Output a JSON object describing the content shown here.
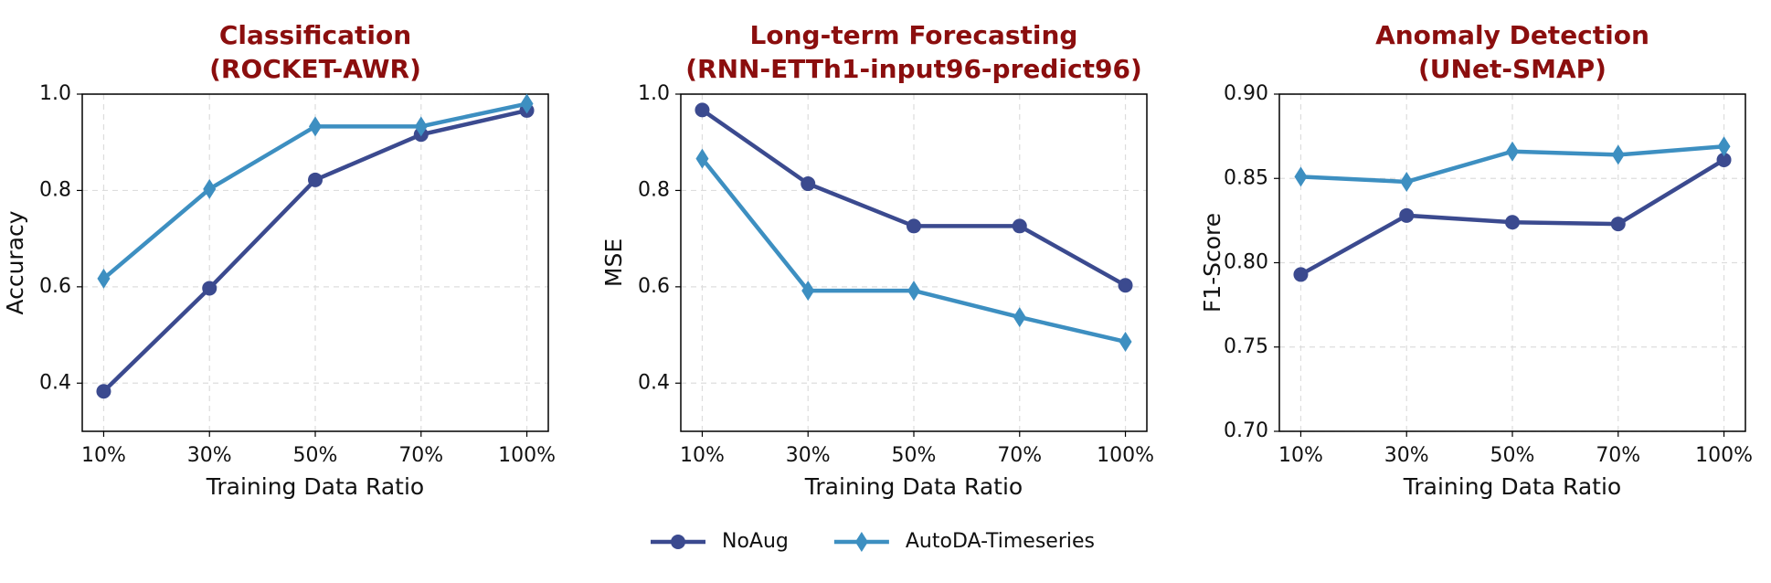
{
  "chart_data": [
    {
      "type": "line",
      "title": "Classification",
      "subtitle": "(ROCKET-AWR)",
      "xlabel": "Training Data Ratio",
      "ylabel": "Accuracy",
      "categories": [
        "10%",
        "30%",
        "50%",
        "70%",
        "100%"
      ],
      "ylim": [
        0.3,
        1.0
      ],
      "yticks": [
        0.4,
        0.6,
        0.8,
        {
          "value": 1.0,
          "label": "1.0"
        }
      ],
      "grid": true,
      "series": [
        {
          "name": "NoAug",
          "color": "#3b4a8f",
          "marker": "circle",
          "values": [
            0.383,
            0.597,
            0.822,
            0.916,
            0.966
          ]
        },
        {
          "name": "AutoDA-Timeseries",
          "color": "#3d8fc1",
          "marker": "diamond",
          "values": [
            0.617,
            0.803,
            0.933,
            0.933,
            0.98
          ]
        }
      ]
    },
    {
      "type": "line",
      "title": "Long-term Forecasting",
      "subtitle": "(RNN-ETTh1-input96-predict96)",
      "xlabel": "Training Data Ratio",
      "ylabel": "MSE",
      "categories": [
        "10%",
        "30%",
        "50%",
        "70%",
        "100%"
      ],
      "ylim": [
        0.3,
        1.0
      ],
      "yticks": [
        0.4,
        0.6,
        0.8,
        {
          "value": 1.0,
          "label": "1.0"
        }
      ],
      "grid": true,
      "series": [
        {
          "name": "NoAug",
          "color": "#3b4a8f",
          "marker": "circle",
          "values": [
            0.967,
            0.814,
            0.726,
            0.726,
            0.603
          ]
        },
        {
          "name": "AutoDA-Timeseries",
          "color": "#3d8fc1",
          "marker": "diamond",
          "values": [
            0.866,
            0.592,
            0.592,
            0.537,
            0.486
          ]
        }
      ]
    },
    {
      "type": "line",
      "title": "Anomaly Detection",
      "subtitle": "(UNet-SMAP)",
      "xlabel": "Training Data Ratio",
      "ylabel": "F1-Score",
      "categories": [
        "10%",
        "30%",
        "50%",
        "70%",
        "100%"
      ],
      "ylim": [
        0.7,
        0.9
      ],
      "yticks": [
        {
          "value": 0.7,
          "label": "0.70"
        },
        0.75,
        {
          "value": 0.8,
          "label": "0.80"
        },
        0.85,
        {
          "value": 0.9,
          "label": "0.90"
        }
      ],
      "grid": true,
      "series": [
        {
          "name": "NoAug",
          "color": "#3b4a8f",
          "marker": "circle",
          "values": [
            0.793,
            0.828,
            0.824,
            0.823,
            0.861
          ]
        },
        {
          "name": "AutoDA-Timeseries",
          "color": "#3d8fc1",
          "marker": "diamond",
          "values": [
            0.851,
            0.848,
            0.866,
            0.864,
            0.869
          ]
        }
      ]
    }
  ]
}
